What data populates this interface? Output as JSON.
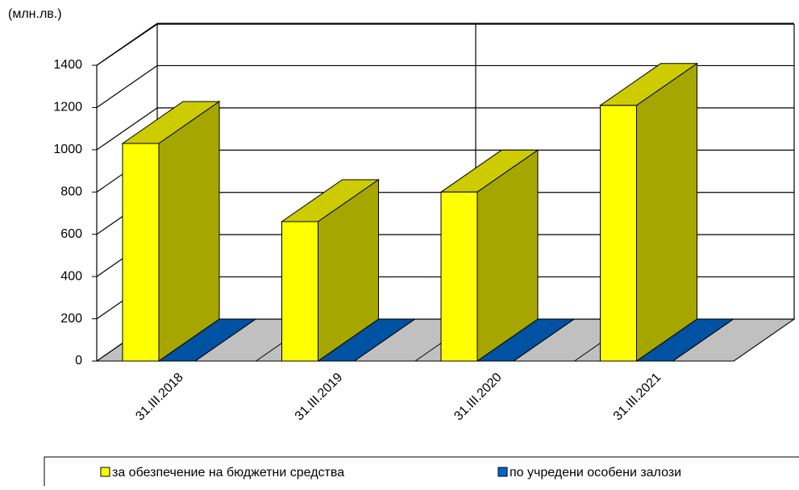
{
  "chart_data": {
    "type": "bar3d",
    "y_label": "(млн.лв.)",
    "categories": [
      "31.III.2018",
      "31.III.2019",
      "31.III.2020",
      "31.III.2021"
    ],
    "series": [
      {
        "name": "за обезпечение на бюджетни средства",
        "color": "#ffff00",
        "values": [
          1030,
          660,
          800,
          1210
        ]
      },
      {
        "name": "по учредени  особени залози",
        "color": "#0066cc",
        "values": [
          0,
          0,
          0,
          0
        ]
      }
    ],
    "ylim": [
      0,
      1400
    ],
    "yticks": [
      0,
      200,
      400,
      600,
      800,
      1000,
      1200,
      1400
    ],
    "grid": true,
    "legend": "bottom"
  }
}
